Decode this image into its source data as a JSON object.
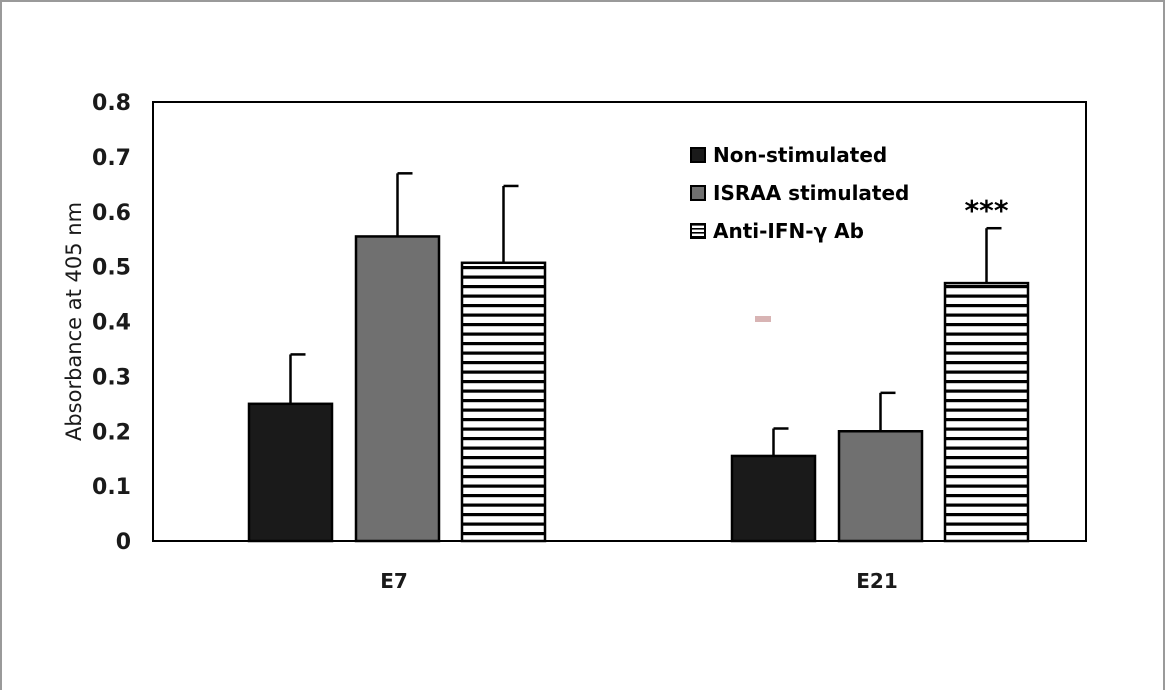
{
  "chart_data": {
    "type": "bar",
    "title": "",
    "xlabel": "",
    "ylabel": "Absorbance at 405 nm",
    "ylim": [
      0,
      0.8
    ],
    "yticks": [
      0,
      0.1,
      0.2,
      0.3,
      0.4,
      0.5,
      0.6,
      0.7,
      0.8
    ],
    "ytick_labels": [
      "0",
      "0.1",
      "0.2",
      "0.3",
      "0.4",
      "0.5",
      "0.6",
      "0.7",
      "0.8"
    ],
    "categories": [
      "E7",
      "E21"
    ],
    "series": [
      {
        "name": "Non-stimulated",
        "values": [
          0.25,
          0.155
        ],
        "errors": [
          0.09,
          0.05
        ],
        "fill": "solid",
        "color": "#1a1a1a"
      },
      {
        "name": "ISRAA stimulated",
        "values": [
          0.555,
          0.2
        ],
        "errors": [
          0.115,
          0.07
        ],
        "fill": "solid",
        "color": "#707070"
      },
      {
        "name": "Anti-IFN-γ Ab",
        "values": [
          0.507,
          0.47
        ],
        "errors": [
          0.14,
          0.1
        ],
        "fill": "horizontal-stripes",
        "color": "#000000"
      }
    ],
    "annotations": [
      {
        "text": "***",
        "category": "E21",
        "series": "Anti-IFN-γ Ab"
      }
    ],
    "legend_position": "top-right",
    "grid": false
  }
}
